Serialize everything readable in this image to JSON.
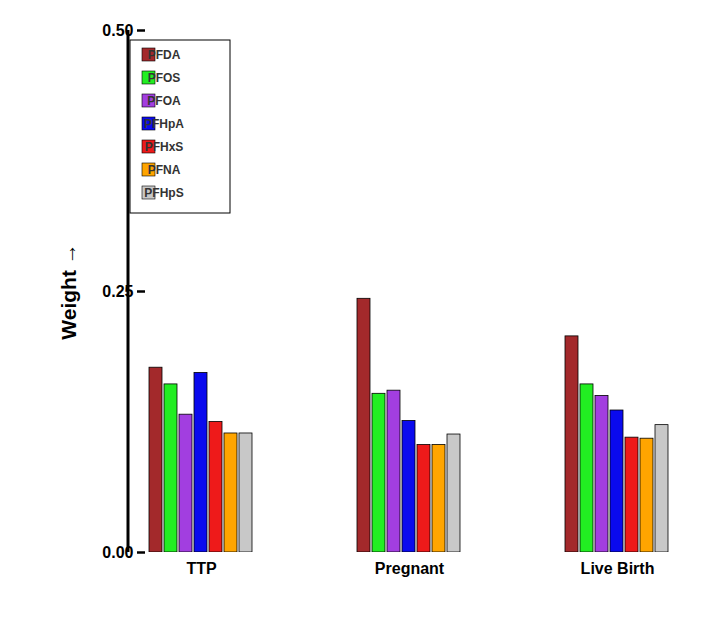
{
  "chart_data": {
    "type": "bar",
    "categories": [
      "TTP",
      "Pregnant",
      "Live Birth"
    ],
    "series": [
      {
        "name": "PFDA",
        "color": "#a3292b",
        "values": [
          0.177,
          0.243,
          0.207
        ]
      },
      {
        "name": "PFOS",
        "color": "#22ee22",
        "values": [
          0.161,
          0.152,
          0.161
        ]
      },
      {
        "name": "PFOA",
        "color": "#a23ee0",
        "values": [
          0.132,
          0.155,
          0.15
        ]
      },
      {
        "name": "PFHpA",
        "color": "#0a0aee",
        "values": [
          0.172,
          0.126,
          0.136
        ]
      },
      {
        "name": "PFHxS",
        "color": "#ee1a1a",
        "values": [
          0.125,
          0.103,
          0.11
        ]
      },
      {
        "name": "PFNA",
        "color": "#ffa500",
        "values": [
          0.114,
          0.103,
          0.109
        ]
      },
      {
        "name": "PFHpS",
        "color": "#c8c8c8",
        "values": [
          0.114,
          0.113,
          0.122
        ]
      }
    ],
    "y_label": "Weight",
    "ylim": [
      0,
      0.5
    ],
    "yticks": [
      {
        "value": 0,
        "label": "0.00"
      },
      {
        "value": 0.25,
        "label": "0.25"
      },
      {
        "value": 0.5,
        "label": "0.50"
      }
    ],
    "grid": false,
    "legend": "top-left"
  }
}
